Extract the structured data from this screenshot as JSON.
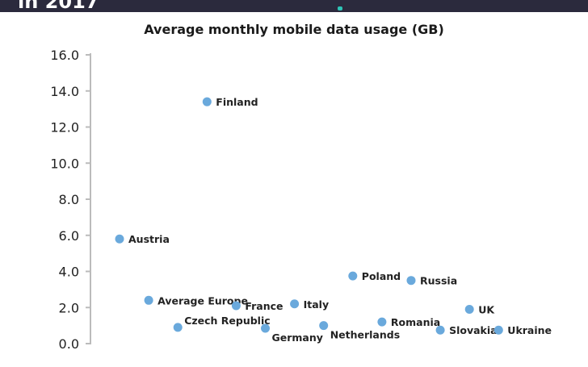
{
  "header": {
    "title_fragment": "in 2017"
  },
  "chart_data": {
    "type": "scatter",
    "title": "Average monthly mobile data usage (GB)",
    "xlabel": "",
    "ylabel": "",
    "ylim": [
      0,
      16
    ],
    "yticks": [
      "0.0",
      "2.0",
      "4.0",
      "6.0",
      "8.0",
      "10.0",
      "12.0",
      "14.0",
      "16.0"
    ],
    "grid": false,
    "point_color": "#6aa9dc",
    "points": [
      {
        "label": "Austria",
        "y": 5.8
      },
      {
        "label": "Average Europe",
        "y": 2.4
      },
      {
        "label": "Czech Republic",
        "y": 0.9
      },
      {
        "label": "Finland",
        "y": 13.4
      },
      {
        "label": "France",
        "y": 2.1
      },
      {
        "label": "Germany",
        "y": 0.85
      },
      {
        "label": "Italy",
        "y": 2.2
      },
      {
        "label": "Netherlands",
        "y": 1.0
      },
      {
        "label": "Poland",
        "y": 3.75
      },
      {
        "label": "Romania",
        "y": 1.2
      },
      {
        "label": "Russia",
        "y": 3.5
      },
      {
        "label": "Slovakia",
        "y": 0.75
      },
      {
        "label": "UK",
        "y": 1.9
      },
      {
        "label": "Ukraine",
        "y": 0.75
      }
    ]
  }
}
